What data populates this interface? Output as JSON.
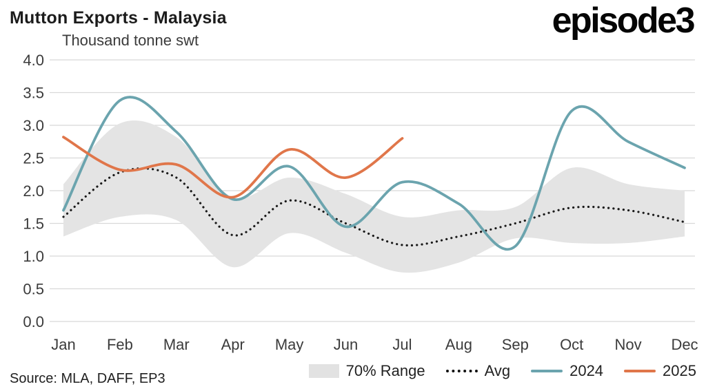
{
  "header": {
    "title": "Mutton Exports - Malaysia",
    "subtitle": "Thousand tonne swt",
    "logo": "episode3"
  },
  "footer": {
    "source": "Source: MLA, DAFF, EP3"
  },
  "legend": [
    {
      "key": "range",
      "label": "70% Range",
      "type": "band",
      "color": "#e2e2e2"
    },
    {
      "key": "avg",
      "label": "Avg",
      "type": "dotted",
      "color": "#111111"
    },
    {
      "key": "y2024",
      "label": "2024",
      "type": "line",
      "color": "#6ba4ae"
    },
    {
      "key": "y2025",
      "label": "2025",
      "type": "line",
      "color": "#e0764a"
    }
  ],
  "colors": {
    "band": "#e4e4e4",
    "avg": "#1a1a1a",
    "line_2024": "#6ba4ae",
    "line_2025": "#e0764a",
    "grid": "#d8d8d8",
    "axis_text": "#3b3b3b"
  },
  "chart_data": {
    "type": "line",
    "title": "Mutton Exports - Malaysia",
    "ylabel": "Thousand tonne swt",
    "categories": [
      "Jan",
      "Feb",
      "Mar",
      "Apr",
      "May",
      "Jun",
      "Jul",
      "Aug",
      "Sep",
      "Oct",
      "Nov",
      "Dec"
    ],
    "ylim": [
      0,
      4
    ],
    "ytick_step": 0.5,
    "grid": "horizontal",
    "legend_position": "bottom",
    "band": {
      "name": "70% Range",
      "color": "#e4e4e4",
      "upper": [
        2.1,
        3.03,
        2.82,
        1.9,
        2.2,
        1.95,
        1.6,
        1.7,
        1.75,
        2.35,
        2.1,
        2.0
      ],
      "lower": [
        1.3,
        1.6,
        1.55,
        0.83,
        1.35,
        1.05,
        0.75,
        0.9,
        1.27,
        1.2,
        1.2,
        1.3
      ]
    },
    "series": [
      {
        "name": "Avg",
        "style": "dotted",
        "color": "#1a1a1a",
        "values": [
          1.6,
          2.28,
          2.2,
          1.32,
          1.85,
          1.5,
          1.17,
          1.3,
          1.5,
          1.74,
          1.7,
          1.52
        ]
      },
      {
        "name": "2024",
        "style": "solid",
        "color": "#6ba4ae",
        "values": [
          1.7,
          3.38,
          2.9,
          1.87,
          2.37,
          1.45,
          2.13,
          1.8,
          1.15,
          3.22,
          2.75,
          2.35
        ]
      },
      {
        "name": "2025",
        "style": "solid",
        "color": "#e0764a",
        "values": [
          2.82,
          2.32,
          2.4,
          1.9,
          2.63,
          2.2,
          2.8,
          null,
          null,
          null,
          null,
          null
        ]
      }
    ]
  }
}
